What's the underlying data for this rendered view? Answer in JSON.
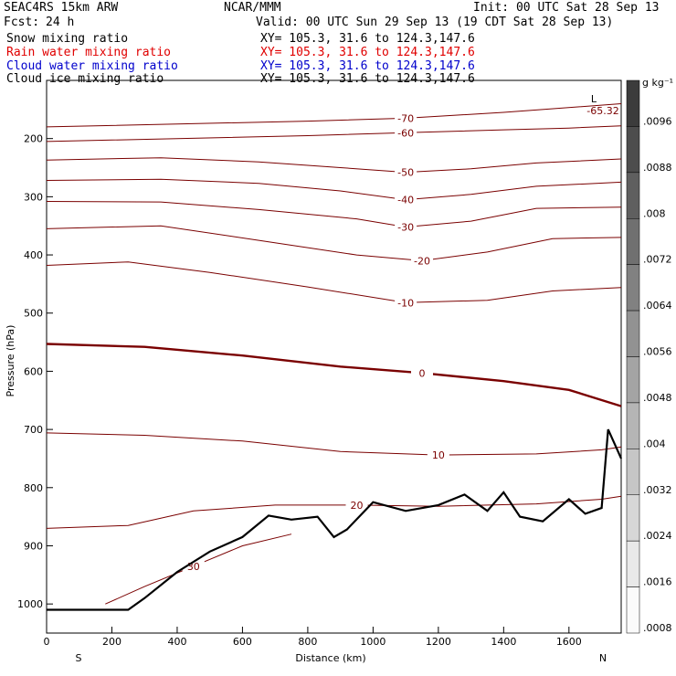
{
  "header": {
    "model": "SEAC4RS 15km ARW",
    "org": "NCAR/MMM",
    "init": "Init: 00 UTC Sat 28 Sep 13",
    "fcst_label": "Fcst:",
    "fcst_value": "24 h",
    "valid": "Valid: 00 UTC Sun 29 Sep 13 (19 CDT Sat 28 Sep 13)"
  },
  "fields": [
    {
      "name": "Snow mixing ratio",
      "xy": "XY= 105.3, 31.6 to 124.3,147.6",
      "color": "#000000"
    },
    {
      "name": "Rain water mixing ratio",
      "xy": "XY= 105.3, 31.6 to 124.3,147.6",
      "color": "#e00000"
    },
    {
      "name": "Cloud water mixing ratio",
      "xy": "XY= 105.3, 31.6 to 124.3,147.6",
      "color": "#0000cc"
    },
    {
      "name": "Cloud ice mixing ratio",
      "xy": "XY= 105.3, 31.6 to 124.3,147.6",
      "color": "#000000"
    }
  ],
  "chart_data": {
    "type": "contour-cross-section",
    "xlabel": "Distance (km)",
    "ylabel": "Pressure (hPa)",
    "xlim": [
      0,
      1760
    ],
    "ylim": [
      1050,
      100
    ],
    "x_ticks": [
      0,
      200,
      400,
      600,
      800,
      1000,
      1200,
      1400,
      1600
    ],
    "y_ticks": [
      200,
      300,
      400,
      500,
      600,
      700,
      800,
      900,
      1000
    ],
    "x_end_labels": {
      "left": "S",
      "right": "N"
    },
    "low_label": "L",
    "low_value": "-65.32",
    "contour_color": "#7a0000",
    "temperature_contours": [
      {
        "value": "-70",
        "points": [
          [
            0,
            180
          ],
          [
            400,
            175
          ],
          [
            800,
            170
          ],
          [
            1100,
            165
          ],
          [
            1400,
            155
          ],
          [
            1760,
            140
          ]
        ]
      },
      {
        "value": "-60",
        "points": [
          [
            0,
            205
          ],
          [
            400,
            200
          ],
          [
            800,
            195
          ],
          [
            1100,
            190
          ],
          [
            1400,
            185
          ],
          [
            1600,
            182
          ],
          [
            1760,
            178
          ]
        ]
      },
      {
        "value": "-50",
        "points": [
          [
            0,
            237
          ],
          [
            350,
            233
          ],
          [
            650,
            240
          ],
          [
            900,
            250
          ],
          [
            1100,
            258
          ],
          [
            1300,
            252
          ],
          [
            1500,
            242
          ],
          [
            1760,
            235
          ]
        ]
      },
      {
        "value": "-40",
        "points": [
          [
            0,
            272
          ],
          [
            350,
            270
          ],
          [
            650,
            277
          ],
          [
            900,
            290
          ],
          [
            1100,
            305
          ],
          [
            1300,
            296
          ],
          [
            1500,
            282
          ],
          [
            1760,
            275
          ]
        ]
      },
      {
        "value": "-30",
        "points": [
          [
            0,
            308
          ],
          [
            350,
            309
          ],
          [
            650,
            322
          ],
          [
            950,
            338
          ],
          [
            1100,
            352
          ],
          [
            1300,
            342
          ],
          [
            1500,
            320
          ],
          [
            1760,
            318
          ]
        ]
      },
      {
        "value": "-20",
        "points": [
          [
            0,
            355
          ],
          [
            350,
            350
          ],
          [
            650,
            375
          ],
          [
            950,
            400
          ],
          [
            1150,
            410
          ],
          [
            1350,
            395
          ],
          [
            1550,
            372
          ],
          [
            1760,
            370
          ]
        ]
      },
      {
        "value": "-10",
        "points": [
          [
            0,
            418
          ],
          [
            250,
            412
          ],
          [
            500,
            430
          ],
          [
            800,
            455
          ],
          [
            1100,
            482
          ],
          [
            1350,
            478
          ],
          [
            1550,
            462
          ],
          [
            1760,
            456
          ]
        ]
      },
      {
        "value": "0",
        "points": [
          [
            0,
            553
          ],
          [
            300,
            558
          ],
          [
            600,
            573
          ],
          [
            900,
            592
          ],
          [
            1150,
            603
          ],
          [
            1400,
            617
          ],
          [
            1600,
            632
          ],
          [
            1760,
            660
          ]
        ]
      },
      {
        "value": "10",
        "points": [
          [
            0,
            706
          ],
          [
            300,
            710
          ],
          [
            600,
            720
          ],
          [
            900,
            738
          ],
          [
            1200,
            744
          ],
          [
            1500,
            742
          ],
          [
            1700,
            735
          ],
          [
            1760,
            730
          ]
        ]
      },
      {
        "value": "20",
        "points": [
          [
            0,
            870
          ],
          [
            250,
            865
          ],
          [
            450,
            840
          ],
          [
            700,
            830
          ],
          [
            950,
            830
          ],
          [
            1200,
            832
          ],
          [
            1500,
            828
          ],
          [
            1700,
            820
          ],
          [
            1760,
            815
          ]
        ]
      },
      {
        "value": "30",
        "points": [
          [
            180,
            1000
          ],
          [
            300,
            970
          ],
          [
            450,
            935
          ],
          [
            600,
            900
          ],
          [
            750,
            880
          ]
        ]
      }
    ],
    "terrain": [
      [
        0,
        1010
      ],
      [
        250,
        1010
      ],
      [
        300,
        990
      ],
      [
        400,
        945
      ],
      [
        500,
        910
      ],
      [
        600,
        885
      ],
      [
        680,
        848
      ],
      [
        750,
        855
      ],
      [
        830,
        850
      ],
      [
        880,
        885
      ],
      [
        920,
        872
      ],
      [
        1000,
        825
      ],
      [
        1100,
        840
      ],
      [
        1200,
        830
      ],
      [
        1280,
        812
      ],
      [
        1350,
        840
      ],
      [
        1400,
        808
      ],
      [
        1450,
        850
      ],
      [
        1520,
        858
      ],
      [
        1600,
        820
      ],
      [
        1650,
        845
      ],
      [
        1700,
        835
      ],
      [
        1720,
        700
      ],
      [
        1760,
        750
      ]
    ],
    "colorbar": {
      "unit": "g kg⁻¹",
      "labels": [
        ".0096",
        ".0088",
        ".008",
        ".0072",
        ".0064",
        ".0056",
        ".0048",
        ".004",
        ".0032",
        ".0024",
        ".0016",
        ".0008"
      ]
    }
  }
}
